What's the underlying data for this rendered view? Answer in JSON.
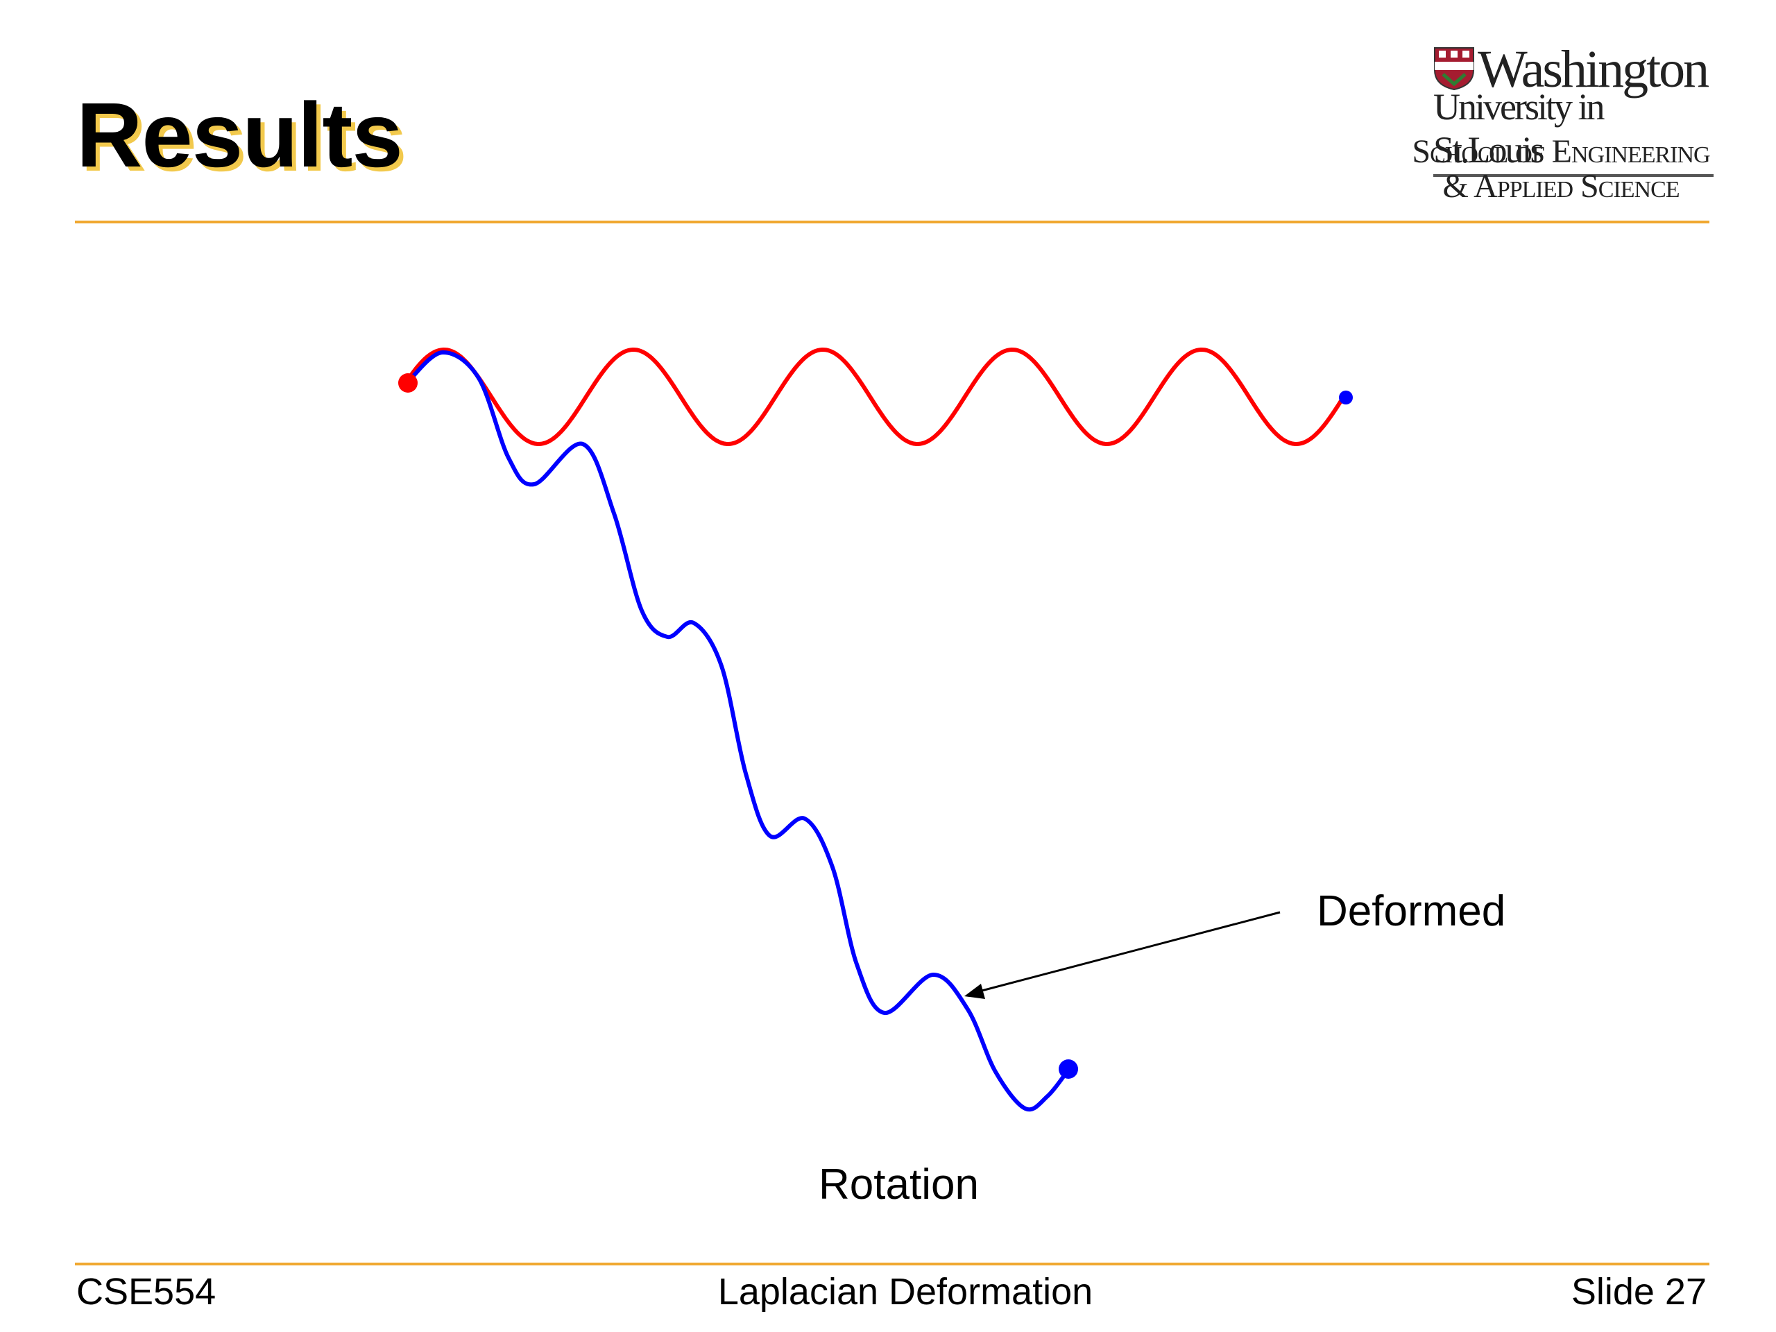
{
  "slide": {
    "title": "Results"
  },
  "logo": {
    "line1": "Washington",
    "line2": "University in St.Louis",
    "line3": "School of Engineering",
    "line4": "& Applied Science"
  },
  "diagram": {
    "labels": {
      "deformed": "Deformed",
      "rotation": "Rotation"
    },
    "colors": {
      "original_curve": "#ff0000",
      "deformed_curve": "#0000ff",
      "start_handle": "#ff0000",
      "end_handle": "#0000ff",
      "arrow": "#000000"
    }
  },
  "footer": {
    "course": "CSE554",
    "topic": "Laplacian Deformation",
    "slide_number": "Slide 27"
  },
  "theme": {
    "accent": "#f0a830",
    "title_shadow": "#f2c94c"
  }
}
